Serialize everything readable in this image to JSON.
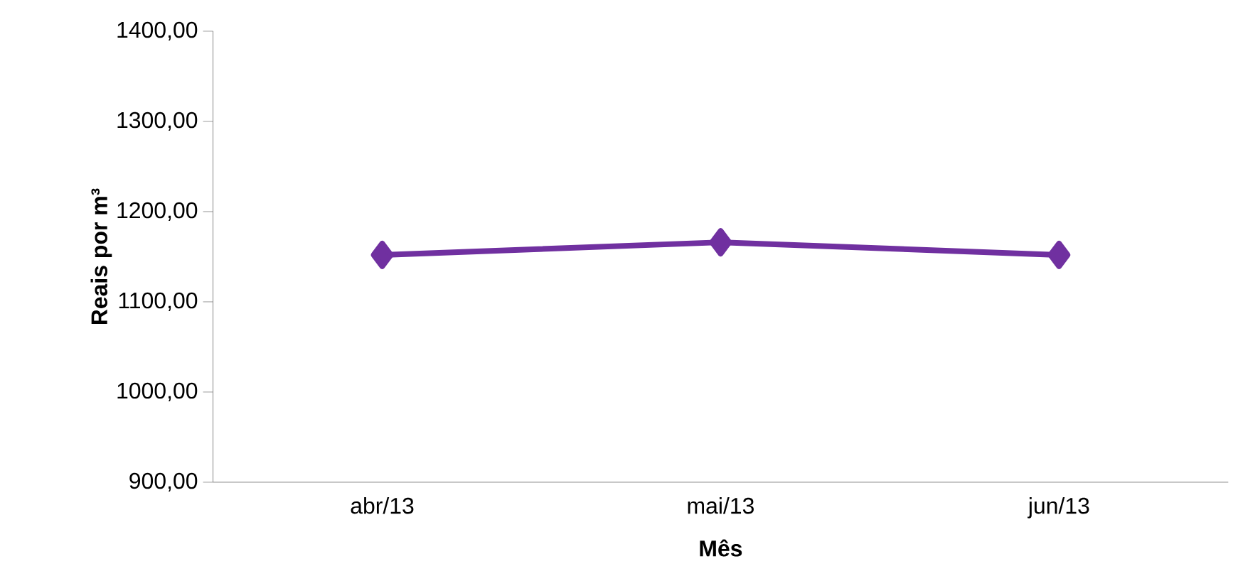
{
  "chart_data": {
    "type": "line",
    "xlabel": "Mês",
    "ylabel": "Reais por m³",
    "categories": [
      "abr/13",
      "mai/13",
      "jun/13"
    ],
    "series": [
      {
        "color": "#7030a0",
        "values": [
          1152,
          1166,
          1152
        ]
      }
    ],
    "ylim": [
      900,
      1400
    ],
    "yticks": [
      {
        "value": 900,
        "label": "900,00"
      },
      {
        "value": 1000,
        "label": "1000,00"
      },
      {
        "value": 1100,
        "label": "1100,00"
      },
      {
        "value": 1200,
        "label": "1200,00"
      },
      {
        "value": 1300,
        "label": "1300,00"
      },
      {
        "value": 1400,
        "label": "1400,00"
      }
    ],
    "marker": "diamond",
    "grid": false
  }
}
